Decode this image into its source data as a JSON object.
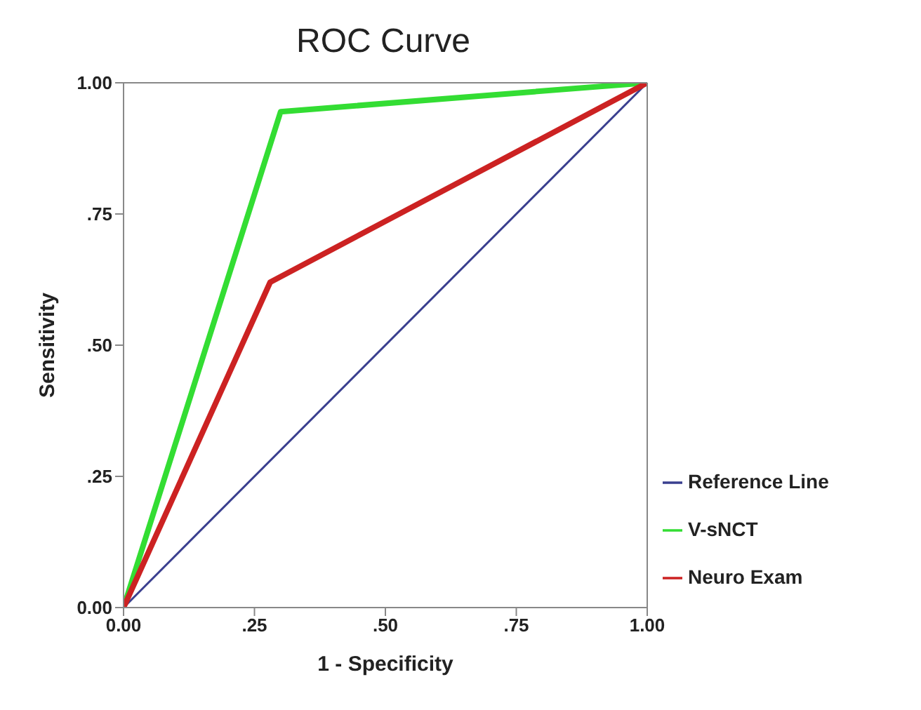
{
  "chart_data": {
    "type": "line",
    "title": "ROC Curve",
    "xlabel": "1 - Specificity",
    "ylabel": "Sensitivity",
    "xlim": [
      0,
      1
    ],
    "ylim": [
      0,
      1
    ],
    "xticks": [
      {
        "value": 0,
        "label": "0.00"
      },
      {
        "value": 0.25,
        "label": ".25"
      },
      {
        "value": 0.5,
        "label": ".50"
      },
      {
        "value": 0.75,
        "label": ".75"
      },
      {
        "value": 1,
        "label": "1.00"
      }
    ],
    "yticks": [
      {
        "value": 0,
        "label": "0.00"
      },
      {
        "value": 0.25,
        "label": ".25"
      },
      {
        "value": 0.5,
        "label": ".50"
      },
      {
        "value": 0.75,
        "label": ".75"
      },
      {
        "value": 1,
        "label": "1.00"
      }
    ],
    "series": [
      {
        "name": "Reference Line",
        "color": "#3a3f8f",
        "x": [
          0,
          1
        ],
        "values": [
          0,
          1
        ]
      },
      {
        "name": "V-sNCT",
        "color": "#33dd33",
        "x": [
          0,
          0.3,
          1
        ],
        "values": [
          0,
          0.945,
          1
        ]
      },
      {
        "name": "Neuro Exam",
        "color": "#cc2222",
        "x": [
          0,
          0.28,
          1
        ],
        "values": [
          0,
          0.62,
          1
        ]
      }
    ],
    "legend": "right",
    "marker": "none",
    "line_style": "solid"
  }
}
